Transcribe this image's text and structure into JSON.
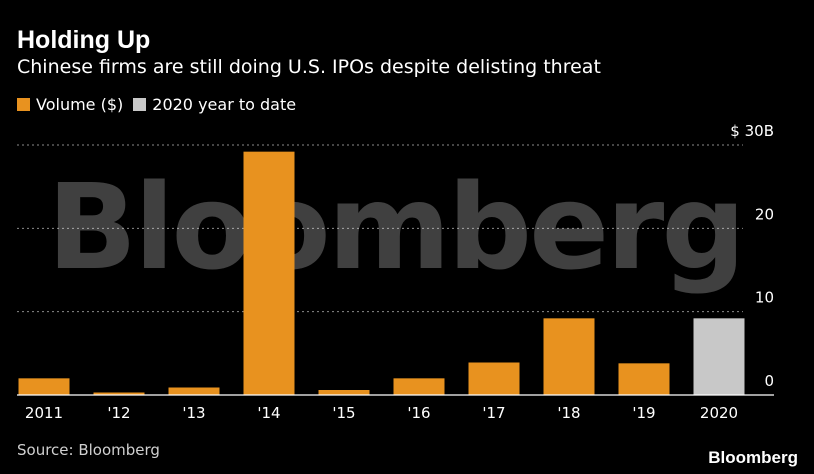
{
  "header": {
    "title": "Holding Up",
    "subtitle": "Chinese firms are still doing U.S. IPOs despite delisting threat"
  },
  "legend": [
    {
      "label": "Volume ($)",
      "color": "#e8921f"
    },
    {
      "label": "2020 year to date",
      "color": "#c8c8c8"
    }
  ],
  "footer": {
    "source": "Source: Bloomberg",
    "brand": "Bloomberg",
    "watermark": "Bloomberg"
  },
  "chart_data": {
    "type": "bar",
    "categories": [
      "2011",
      "'12",
      "'13",
      "'14",
      "'15",
      "'16",
      "'17",
      "'18",
      "'19",
      "2020"
    ],
    "series": [
      {
        "name": "Volume ($)",
        "values": [
          2.0,
          0.3,
          0.9,
          29.2,
          0.6,
          2.0,
          3.9,
          9.2,
          3.8,
          9.2
        ]
      }
    ],
    "highlight_index": 9,
    "highlight_color": "#c8c8c8",
    "bar_color": "#e8921f",
    "ylim": [
      0,
      30
    ],
    "yticks": [
      0,
      10,
      20,
      30
    ],
    "ytick_labels": [
      "0",
      "10",
      "20",
      "$ 30B"
    ],
    "grid": true,
    "legend_position": "top-left"
  }
}
